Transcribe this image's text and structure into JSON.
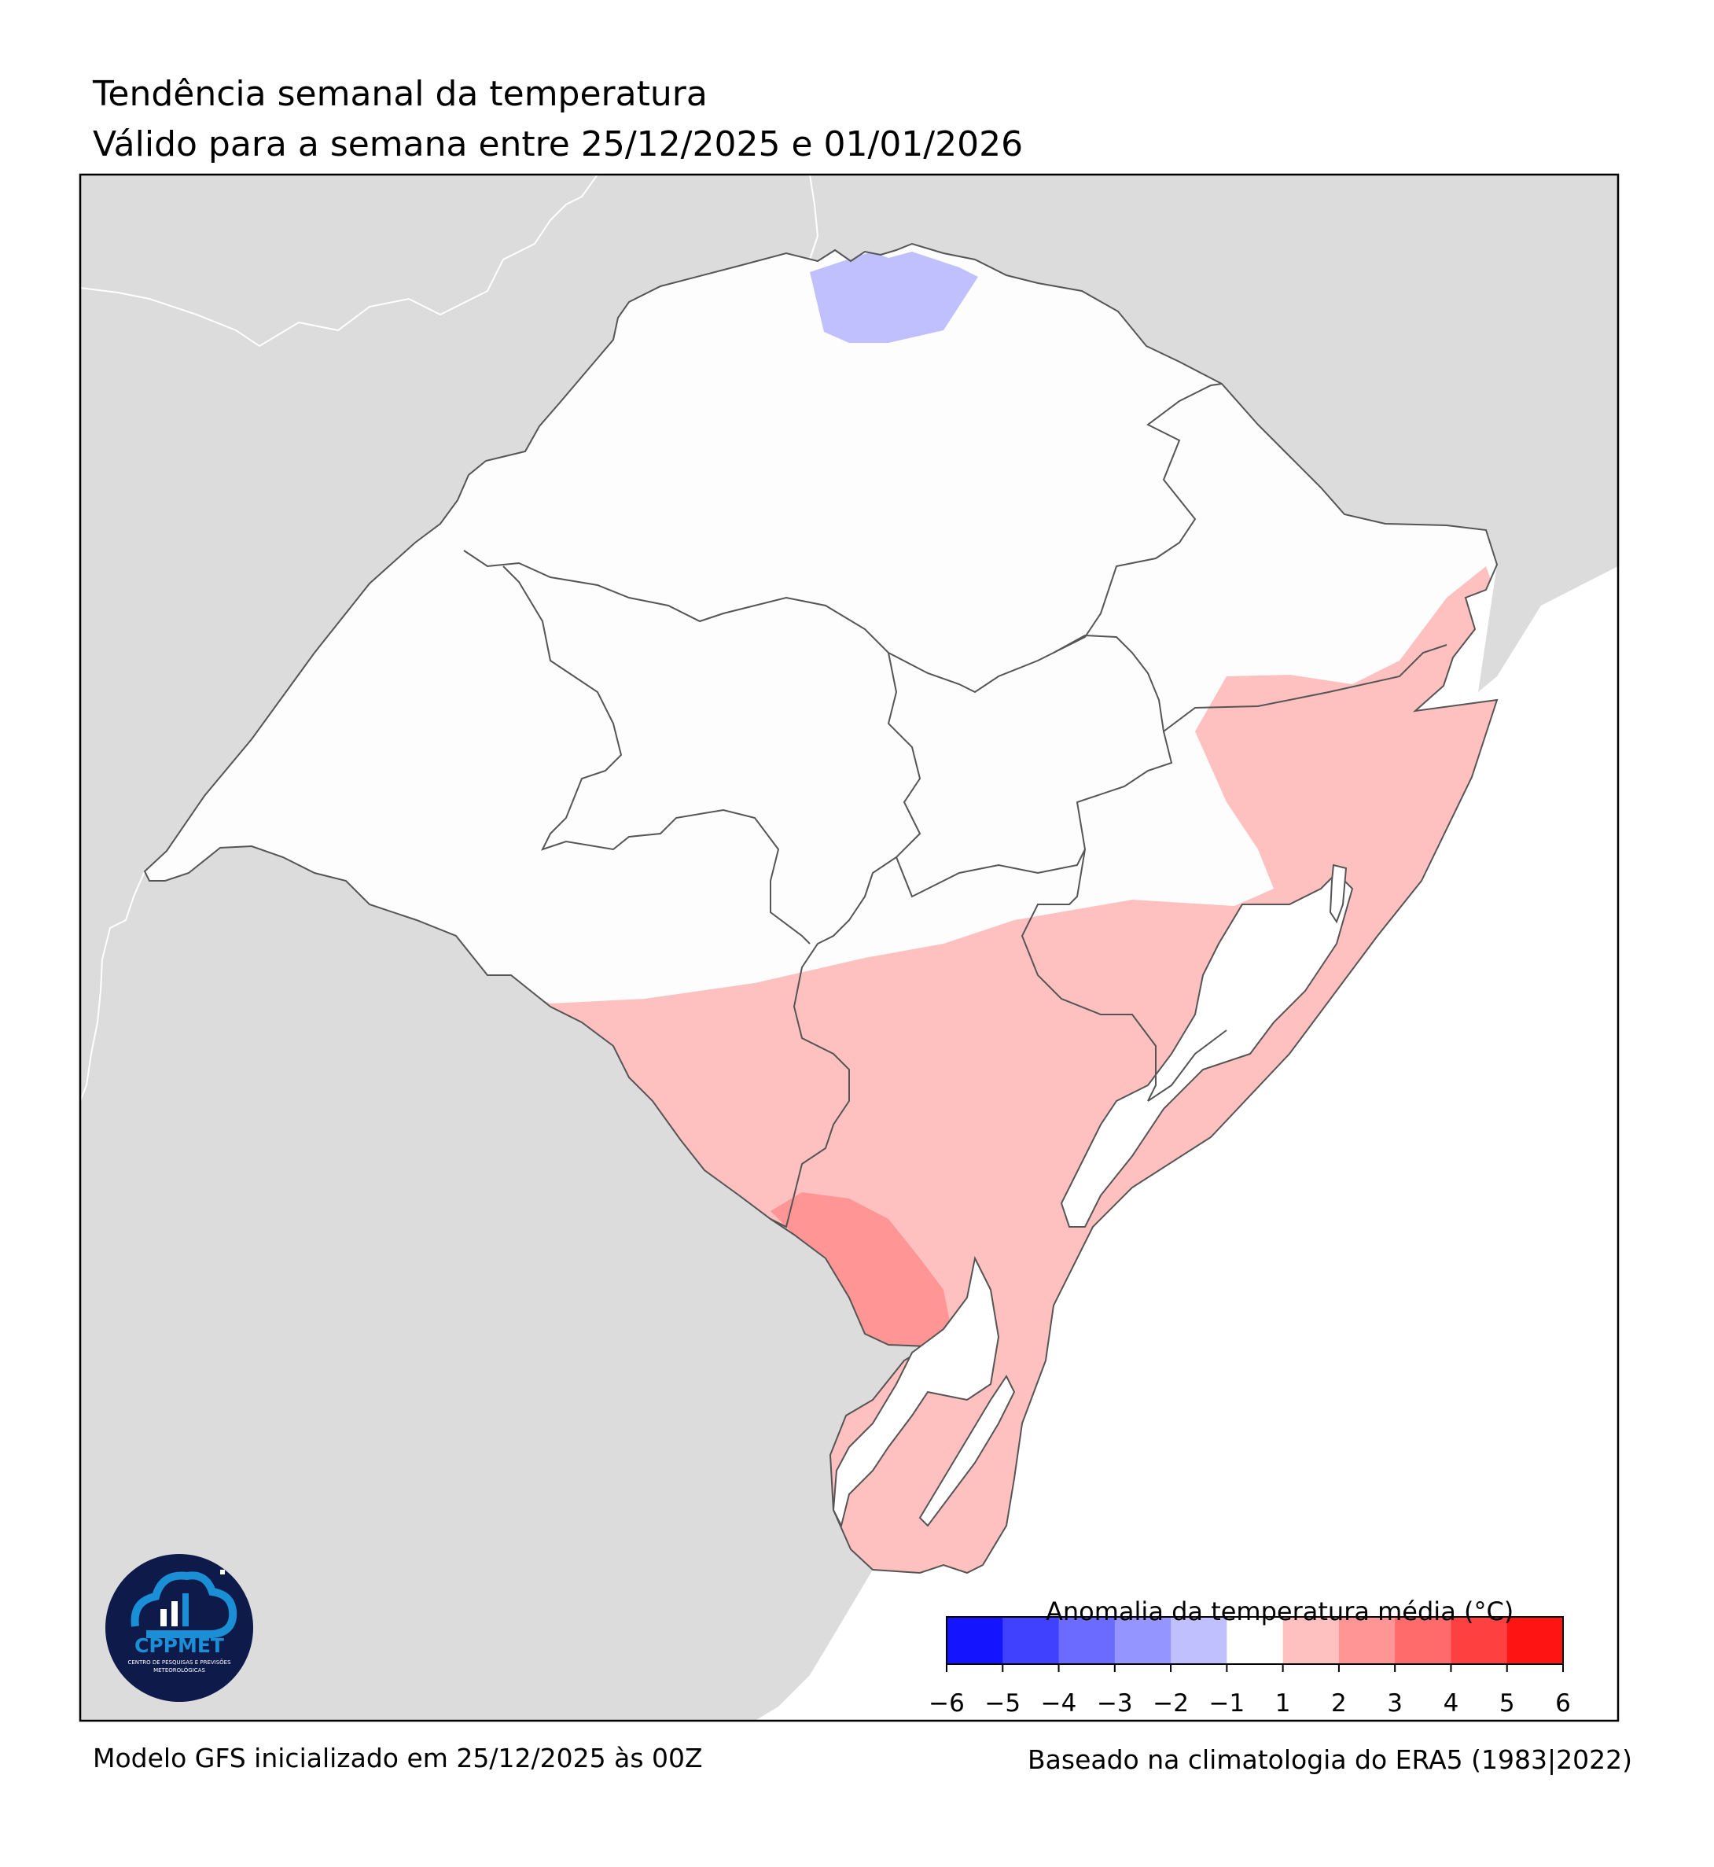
{
  "title": "Tendência semanal da temperatura",
  "subtitle": "Válido para a semana entre 25/12/2025 e 01/01/2026",
  "footer": {
    "model": "Modelo GFS inicializado em 25/12/2025 às 00Z",
    "climatology": "Baseado na climatologia do ERA5 (1983|2022)"
  },
  "colorbar": {
    "title": "Anomalia da temperatura média (°C)",
    "ticks": [
      "−6",
      "−5",
      "−4",
      "−3",
      "−2",
      "−1",
      "1",
      "2",
      "3",
      "4",
      "5",
      "6"
    ],
    "colors": [
      "#1414ff",
      "#4040ff",
      "#6b6bff",
      "#9595ff",
      "#c0c0ff",
      "#ffffff",
      "#ffc0c0",
      "#ff9595",
      "#ff6b6b",
      "#ff4040",
      "#ff1414"
    ]
  },
  "logo": {
    "name": "CPPMET",
    "tagline_line1": "CENTRO DE PESQUISAS E PREVISÕES",
    "tagline_line2": "METEOROLÓGICAS"
  },
  "colors": {
    "land_outside": "#dcdcdc",
    "state_fill": "#fdfdfd",
    "anomaly_1_2": "#ffc0c0",
    "anomaly_2_3": "#ff9595",
    "anomaly_neg_2_neg_1": "#c0c0ff",
    "border": "#555555",
    "logo_bg": "#0d1a4a",
    "logo_accent": "#1b8fd6"
  }
}
